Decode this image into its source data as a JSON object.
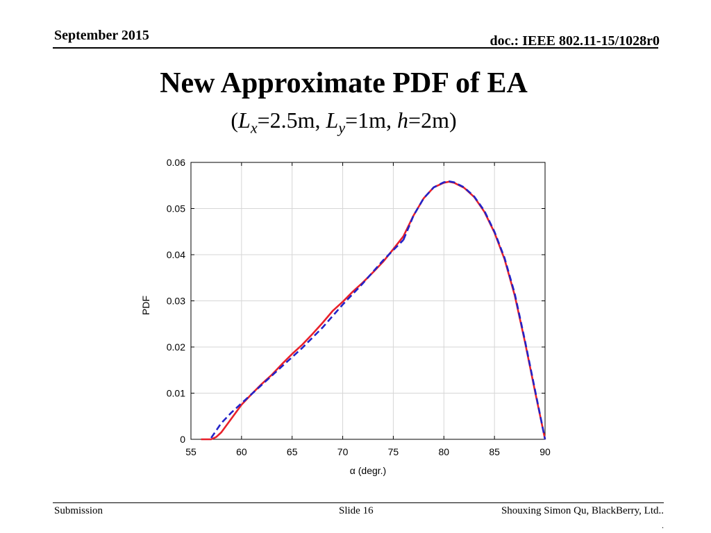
{
  "header": {
    "date": "September 2015",
    "doc": "doc.: IEEE 802.11-15/1028r0"
  },
  "slide": {
    "title": "New Approximate PDF of EA",
    "subtitle": {
      "open": "(",
      "lx_var": "L",
      "lx_sub": "x",
      "lx_val": "=2.5m, ",
      "ly_var": "L",
      "ly_sub": "y",
      "ly_val": "=1m, ",
      "h_var": "h",
      "h_val": "=2m)"
    }
  },
  "chart_data": {
    "type": "line",
    "xlabel": "α (degr.)",
    "ylabel": "PDF",
    "xlim": [
      55,
      90
    ],
    "ylim": [
      0,
      0.06
    ],
    "x_ticks": [
      55,
      60,
      65,
      70,
      75,
      80,
      85,
      90
    ],
    "y_ticks": [
      0,
      0.01,
      0.02,
      0.03,
      0.04,
      0.05,
      0.06
    ],
    "y_tick_labels": [
      "0",
      "0.01",
      "0.02",
      "0.03",
      "0.04",
      "0.05",
      "0.06"
    ],
    "grid": true,
    "series": [
      {
        "color": "#e8202a",
        "style": "solid",
        "points": [
          [
            56,
            0
          ],
          [
            57,
            0
          ],
          [
            57.5,
            0.0005
          ],
          [
            58,
            0.0015
          ],
          [
            59,
            0.0045
          ],
          [
            60,
            0.0075
          ],
          [
            61,
            0.0098
          ],
          [
            62,
            0.012
          ],
          [
            63,
            0.014
          ],
          [
            64,
            0.0163
          ],
          [
            65,
            0.0185
          ],
          [
            66,
            0.0205
          ],
          [
            67,
            0.0228
          ],
          [
            68,
            0.0252
          ],
          [
            69,
            0.0278
          ],
          [
            70,
            0.0298
          ],
          [
            71,
            0.032
          ],
          [
            72,
            0.034
          ],
          [
            73,
            0.0362
          ],
          [
            74,
            0.0385
          ],
          [
            75,
            0.0412
          ],
          [
            76,
            0.044
          ],
          [
            77,
            0.0485
          ],
          [
            78,
            0.0522
          ],
          [
            79,
            0.0546
          ],
          [
            80,
            0.0556
          ],
          [
            80.5,
            0.0558
          ],
          [
            81,
            0.0556
          ],
          [
            82,
            0.0545
          ],
          [
            83,
            0.0525
          ],
          [
            84,
            0.0493
          ],
          [
            85,
            0.0448
          ],
          [
            86,
            0.039
          ],
          [
            87,
            0.0312
          ],
          [
            88,
            0.0212
          ],
          [
            89,
            0.0105
          ],
          [
            90,
            0
          ]
        ]
      },
      {
        "color": "#2323c8",
        "style": "dashed",
        "points": [
          [
            57,
            0.0003
          ],
          [
            58,
            0.0035
          ],
          [
            59,
            0.0058
          ],
          [
            60,
            0.0078
          ],
          [
            62,
            0.0118
          ],
          [
            64,
            0.0158
          ],
          [
            66,
            0.0198
          ],
          [
            68,
            0.0242
          ],
          [
            70,
            0.0292
          ],
          [
            72,
            0.0338
          ],
          [
            74,
            0.0388
          ],
          [
            76,
            0.0432
          ]
        ]
      },
      {
        "color": "#2323c8",
        "style": "dashed",
        "points": [
          [
            76,
            0.0432
          ],
          [
            77,
            0.0485
          ],
          [
            78,
            0.0522
          ],
          [
            79,
            0.0546
          ],
          [
            80,
            0.0557
          ],
          [
            80.5,
            0.0559
          ],
          [
            81,
            0.0557
          ],
          [
            82,
            0.0546
          ],
          [
            83,
            0.0526
          ],
          [
            84,
            0.0495
          ],
          [
            85,
            0.045
          ],
          [
            86,
            0.0393
          ],
          [
            87,
            0.0316
          ],
          [
            88,
            0.0215
          ],
          [
            89,
            0.0108
          ],
          [
            90,
            0
          ]
        ]
      }
    ]
  },
  "footer": {
    "left": "Submission",
    "center": "Slide 16",
    "right": "Shouxing Simon Qu, BlackBerry, Ltd..",
    "dot": "."
  }
}
